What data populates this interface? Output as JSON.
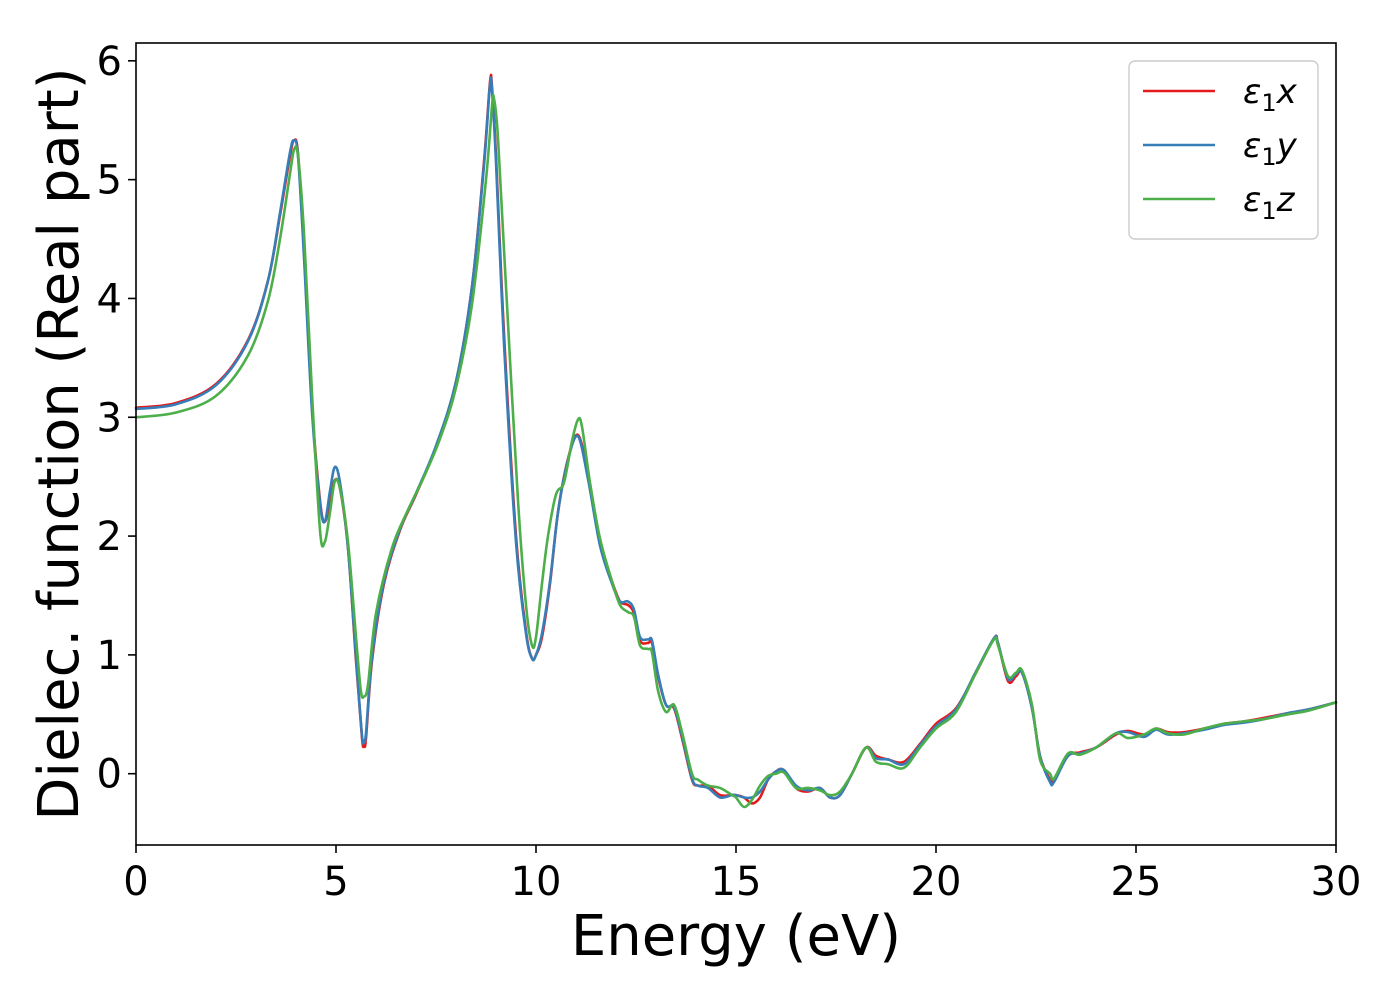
{
  "chart_data": {
    "type": "line",
    "xlabel": "Energy (eV)",
    "ylabel": "Dielec. function (Real part)",
    "xlim": [
      0,
      30
    ],
    "ylim": [
      -0.6,
      6.15
    ],
    "xticks": [
      "0",
      "5",
      "10",
      "15",
      "20",
      "25",
      "30"
    ],
    "yticks": [
      "0",
      "1",
      "2",
      "3",
      "4",
      "5",
      "6"
    ],
    "grid": false,
    "legend_position": "top-right",
    "series": [
      {
        "name": "ε1x",
        "legend_base": "ε",
        "legend_sub": "1",
        "legend_suffix": "x",
        "color": "#e41a1c",
        "x": [
          0,
          1,
          2,
          2.8,
          3.3,
          3.6,
          3.85,
          3.95,
          4.05,
          4.2,
          4.4,
          4.6,
          4.72,
          4.85,
          4.97,
          5.1,
          5.3,
          5.5,
          5.65,
          5.7,
          5.75,
          5.9,
          6.2,
          6.6,
          7.0,
          7.5,
          8.0,
          8.4,
          8.7,
          8.85,
          8.9,
          9.0,
          9.2,
          9.5,
          9.75,
          9.9,
          10.0,
          10.15,
          10.35,
          10.55,
          10.8,
          11.05,
          11.3,
          11.6,
          11.9,
          12.1,
          12.3,
          12.45,
          12.6,
          12.8,
          12.9,
          13.05,
          13.25,
          13.45,
          13.65,
          13.9,
          14.05,
          14.3,
          14.6,
          14.9,
          15.0,
          15.2,
          15.4,
          15.6,
          15.8,
          16.0,
          16.2,
          16.5,
          16.8,
          17.1,
          17.35,
          17.6,
          17.9,
          18.25,
          18.5,
          18.8,
          19.2,
          19.6,
          20.0,
          20.5,
          21.0,
          21.45,
          21.55,
          21.8,
          22.0,
          22.15,
          22.4,
          22.6,
          22.85,
          22.95,
          23.3,
          23.6,
          24.0,
          24.5,
          24.8,
          25.2,
          25.5,
          25.8,
          26.2,
          26.7,
          27.2,
          27.7,
          28.2,
          28.8,
          29.3,
          30.0
        ],
        "y": [
          3.08,
          3.12,
          3.28,
          3.65,
          4.15,
          4.7,
          5.2,
          5.33,
          5.22,
          4.4,
          3.1,
          2.3,
          2.12,
          2.3,
          2.47,
          2.4,
          1.9,
          0.95,
          0.3,
          0.24,
          0.3,
          0.95,
          1.6,
          2.05,
          2.35,
          2.75,
          3.3,
          4.1,
          5.15,
          5.82,
          5.78,
          5.2,
          3.7,
          2.0,
          1.2,
          0.97,
          1.0,
          1.15,
          1.6,
          2.2,
          2.65,
          2.85,
          2.52,
          1.95,
          1.62,
          1.45,
          1.42,
          1.35,
          1.12,
          1.1,
          1.1,
          0.82,
          0.58,
          0.55,
          0.3,
          -0.05,
          -0.1,
          -0.1,
          -0.18,
          -0.18,
          -0.18,
          -0.2,
          -0.25,
          -0.2,
          -0.05,
          0.02,
          0.03,
          -0.12,
          -0.15,
          -0.12,
          -0.2,
          -0.18,
          0.0,
          0.22,
          0.15,
          0.12,
          0.1,
          0.25,
          0.42,
          0.55,
          0.85,
          1.14,
          1.1,
          0.78,
          0.82,
          0.85,
          0.55,
          0.15,
          -0.05,
          -0.05,
          0.15,
          0.18,
          0.22,
          0.33,
          0.36,
          0.33,
          0.38,
          0.35,
          0.35,
          0.38,
          0.42,
          0.44,
          0.47,
          0.51,
          0.54,
          0.6
        ]
      },
      {
        "name": "ε1y",
        "legend_base": "ε",
        "legend_sub": "1",
        "legend_suffix": "y",
        "color": "#377eb8",
        "x": [
          0,
          1,
          2,
          2.8,
          3.3,
          3.6,
          3.85,
          3.95,
          4.05,
          4.2,
          4.4,
          4.6,
          4.72,
          4.85,
          4.97,
          5.1,
          5.3,
          5.5,
          5.65,
          5.7,
          5.75,
          5.9,
          6.2,
          6.6,
          7.0,
          7.5,
          8.0,
          8.4,
          8.7,
          8.85,
          8.9,
          9.0,
          9.2,
          9.5,
          9.75,
          9.9,
          10.0,
          10.15,
          10.35,
          10.55,
          10.8,
          11.05,
          11.3,
          11.6,
          11.9,
          12.1,
          12.3,
          12.45,
          12.6,
          12.8,
          12.9,
          13.05,
          13.25,
          13.45,
          13.65,
          13.9,
          14.05,
          14.3,
          14.6,
          14.9,
          15.0,
          15.2,
          15.4,
          15.6,
          15.8,
          16.0,
          16.2,
          16.5,
          16.8,
          17.1,
          17.35,
          17.6,
          17.9,
          18.25,
          18.5,
          18.8,
          19.2,
          19.6,
          20.0,
          20.5,
          21.0,
          21.45,
          21.55,
          21.8,
          22.0,
          22.15,
          22.4,
          22.6,
          22.85,
          22.95,
          23.3,
          23.6,
          24.0,
          24.5,
          24.8,
          25.2,
          25.5,
          25.8,
          26.2,
          26.7,
          27.2,
          27.7,
          28.2,
          28.8,
          29.3,
          30.0
        ],
        "y": [
          3.07,
          3.11,
          3.27,
          3.64,
          4.15,
          4.72,
          5.23,
          5.33,
          5.2,
          4.35,
          3.05,
          2.28,
          2.12,
          2.38,
          2.58,
          2.45,
          1.9,
          0.98,
          0.32,
          0.28,
          0.34,
          0.98,
          1.62,
          2.06,
          2.36,
          2.76,
          3.3,
          4.1,
          5.12,
          5.8,
          5.75,
          5.15,
          3.62,
          1.95,
          1.18,
          0.97,
          1.0,
          1.18,
          1.62,
          2.2,
          2.64,
          2.84,
          2.48,
          1.92,
          1.6,
          1.45,
          1.45,
          1.38,
          1.15,
          1.13,
          1.12,
          0.84,
          0.58,
          0.56,
          0.32,
          -0.04,
          -0.1,
          -0.12,
          -0.2,
          -0.18,
          -0.18,
          -0.2,
          -0.2,
          -0.15,
          -0.05,
          0.02,
          0.03,
          -0.1,
          -0.14,
          -0.12,
          -0.2,
          -0.18,
          0.0,
          0.22,
          0.13,
          0.12,
          0.08,
          0.24,
          0.4,
          0.54,
          0.86,
          1.14,
          1.1,
          0.8,
          0.84,
          0.85,
          0.55,
          0.15,
          -0.07,
          -0.07,
          0.15,
          0.17,
          0.22,
          0.34,
          0.35,
          0.31,
          0.37,
          0.33,
          0.34,
          0.37,
          0.41,
          0.43,
          0.46,
          0.51,
          0.54,
          0.6
        ]
      },
      {
        "name": "ε1z",
        "legend_base": "ε",
        "legend_sub": "1",
        "legend_suffix": "z",
        "color": "#4daf4a",
        "x": [
          0,
          1,
          2,
          2.8,
          3.3,
          3.6,
          3.85,
          3.95,
          4.05,
          4.2,
          4.4,
          4.6,
          4.72,
          4.85,
          4.97,
          5.1,
          5.3,
          5.5,
          5.62,
          5.7,
          5.8,
          6.0,
          6.4,
          6.8,
          7.2,
          7.6,
          8.0,
          8.4,
          8.75,
          8.9,
          8.95,
          9.05,
          9.25,
          9.55,
          9.75,
          9.9,
          10.0,
          10.15,
          10.3,
          10.5,
          10.7,
          10.9,
          11.05,
          11.15,
          11.35,
          11.6,
          11.9,
          12.1,
          12.3,
          12.45,
          12.6,
          12.8,
          12.9,
          13.05,
          13.25,
          13.45,
          13.65,
          13.9,
          14.05,
          14.3,
          14.6,
          14.9,
          15.0,
          15.2,
          15.4,
          15.6,
          15.8,
          16.0,
          16.2,
          16.5,
          16.8,
          17.1,
          17.35,
          17.6,
          17.9,
          18.25,
          18.5,
          18.8,
          19.2,
          19.6,
          20.0,
          20.5,
          21.0,
          21.45,
          21.55,
          21.8,
          22.0,
          22.15,
          22.4,
          22.6,
          22.85,
          22.95,
          23.3,
          23.6,
          24.0,
          24.5,
          24.8,
          25.2,
          25.5,
          25.8,
          26.2,
          26.7,
          27.2,
          27.7,
          28.2,
          28.8,
          29.3,
          30.0
        ],
        "y": [
          3.0,
          3.04,
          3.18,
          3.52,
          3.98,
          4.5,
          5.05,
          5.25,
          5.2,
          4.55,
          3.2,
          2.05,
          1.95,
          2.2,
          2.46,
          2.4,
          1.95,
          1.15,
          0.7,
          0.65,
          0.75,
          1.35,
          1.9,
          2.22,
          2.5,
          2.82,
          3.25,
          3.95,
          5.0,
          5.62,
          5.68,
          5.35,
          4.1,
          2.3,
          1.42,
          1.08,
          1.15,
          1.6,
          2.0,
          2.35,
          2.45,
          2.8,
          2.98,
          2.92,
          2.45,
          1.98,
          1.62,
          1.42,
          1.36,
          1.32,
          1.08,
          1.05,
          1.02,
          0.7,
          0.52,
          0.58,
          0.35,
          0.0,
          -0.05,
          -0.1,
          -0.12,
          -0.18,
          -0.2,
          -0.28,
          -0.22,
          -0.1,
          -0.02,
          0.0,
          0.01,
          -0.12,
          -0.12,
          -0.14,
          -0.18,
          -0.15,
          0.0,
          0.22,
          0.1,
          0.08,
          0.05,
          0.22,
          0.38,
          0.52,
          0.85,
          1.13,
          1.08,
          0.82,
          0.85,
          0.87,
          0.58,
          0.12,
          0.0,
          -0.04,
          0.17,
          0.16,
          0.22,
          0.34,
          0.3,
          0.33,
          0.38,
          0.34,
          0.33,
          0.38,
          0.42,
          0.44,
          0.46,
          0.5,
          0.53,
          0.6
        ]
      }
    ]
  }
}
